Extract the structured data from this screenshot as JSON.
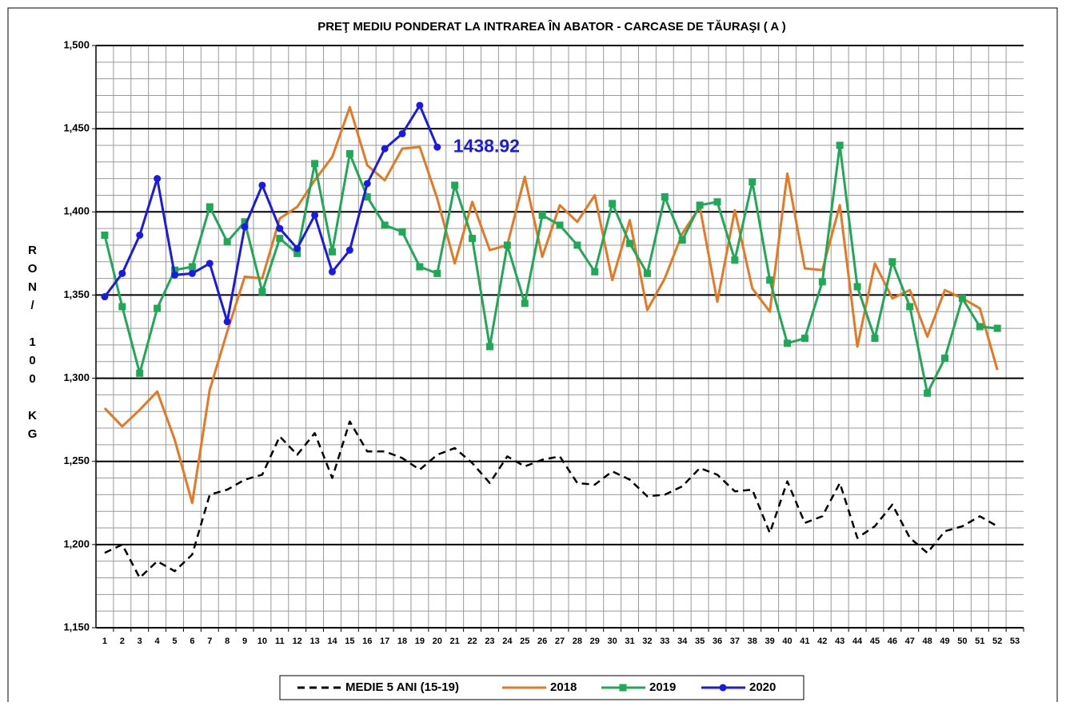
{
  "chart_data": {
    "type": "line",
    "title": "PREŢ MEDIU PONDERAT LA INTRAREA ÎN ABATOR - CARCASE DE TĂURAŞI ( A )",
    "y_label": "RON/ 100 KG",
    "categories": [
      "1",
      "2",
      "3",
      "4",
      "5",
      "6",
      "7",
      "8",
      "9",
      "10",
      "11",
      "12",
      "13",
      "14",
      "15",
      "16",
      "17",
      "18",
      "19",
      "20",
      "21",
      "22",
      "23",
      "24",
      "25",
      "26",
      "27",
      "28",
      "29",
      "30",
      "31",
      "32",
      "33",
      "34",
      "35",
      "36",
      "37",
      "38",
      "39",
      "40",
      "41",
      "42",
      "43",
      "44",
      "45",
      "46",
      "47",
      "48",
      "49",
      "50",
      "51",
      "52",
      "53"
    ],
    "ylim": [
      1150,
      1500
    ],
    "yticks": [
      {
        "value": 1150,
        "label": "1,150"
      },
      {
        "value": 1200,
        "label": "1,200"
      },
      {
        "value": 1250,
        "label": "1,250"
      },
      {
        "value": 1300,
        "label": "1,300"
      },
      {
        "value": 1350,
        "label": "1,350"
      },
      {
        "value": 1400,
        "label": "1,400"
      },
      {
        "value": 1450,
        "label": "1,450"
      },
      {
        "value": 1500,
        "label": "1,500"
      }
    ],
    "grid": true,
    "legend": "bottom",
    "annotation": "1438.92",
    "annotation_series": 3,
    "annotation_index": 19,
    "series": [
      {
        "name": "MEDIE 5 ANI (15-19)",
        "color": "#000000",
        "dash": true,
        "marker": "none",
        "values": [
          1195,
          1200,
          1180,
          1190,
          1184,
          1194,
          1230,
          1233,
          1239,
          1242,
          1265,
          1254,
          1267,
          1240,
          1274,
          1256,
          1256,
          1252,
          1245,
          1254,
          1258,
          1249,
          1237,
          1253,
          1247,
          1251,
          1253,
          1237,
          1236,
          1244,
          1239,
          1229,
          1230,
          1235,
          1246,
          1242,
          1232,
          1233,
          1207,
          1238,
          1213,
          1217,
          1237,
          1204,
          1211,
          1224,
          1204,
          1195,
          1208,
          1211,
          1217,
          1211,
          null
        ]
      },
      {
        "name": "2018",
        "color": "#e87722",
        "dash": false,
        "marker": "none",
        "values": [
          1282,
          1271,
          1281,
          1292,
          1263,
          1225,
          1293,
          1328,
          1361,
          1360,
          1396,
          1403,
          1419,
          1433,
          1463,
          1428,
          1419,
          1438,
          1439,
          1408,
          1369,
          1406,
          1377,
          1380,
          1421,
          1373,
          1404,
          1394,
          1410,
          1359,
          1395,
          1341,
          1360,
          1387,
          1403,
          1346,
          1401,
          1354,
          1340,
          1423,
          1366,
          1365,
          1404,
          1319,
          1369,
          1348,
          1353,
          1325,
          1353,
          1348,
          1342,
          1305,
          null
        ]
      },
      {
        "name": "2019",
        "color": "#1fa855",
        "dash": false,
        "marker": "square",
        "values": [
          1386,
          1343,
          1303,
          1342,
          1365,
          1367,
          1403,
          1382,
          1394,
          1352,
          1384,
          1375,
          1429,
          1376,
          1435,
          1409,
          1392,
          1388,
          1367,
          1363,
          1416,
          1384,
          1319,
          1380,
          1345,
          1398,
          1392,
          1380,
          1364,
          1405,
          1381,
          1363,
          1409,
          1383,
          1404,
          1406,
          1371,
          1418,
          1359,
          1321,
          1324,
          1358,
          1440,
          1355,
          1324,
          1370,
          1343,
          1291,
          1312,
          1348,
          1331,
          1330,
          null
        ]
      },
      {
        "name": "2020",
        "color": "#1a1ae6",
        "dash": false,
        "marker": "circle",
        "values": [
          1349,
          1363,
          1386,
          1420,
          1362,
          1363,
          1369,
          1334,
          1391,
          1416,
          1390,
          1378,
          1398,
          1364,
          1377,
          1417,
          1438,
          1447,
          1464,
          1438.92,
          null,
          null,
          null,
          null,
          null,
          null,
          null,
          null,
          null,
          null,
          null,
          null,
          null,
          null,
          null,
          null,
          null,
          null,
          null,
          null,
          null,
          null,
          null,
          null,
          null,
          null,
          null,
          null,
          null,
          null,
          null,
          null,
          null
        ]
      }
    ]
  }
}
